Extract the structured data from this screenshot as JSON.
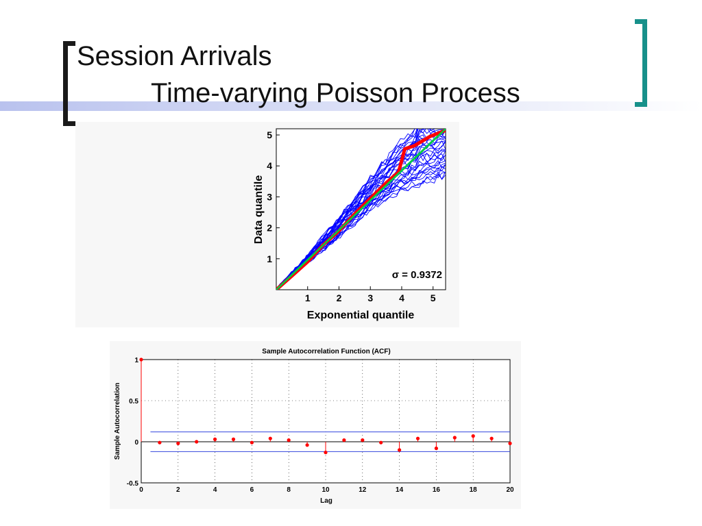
{
  "slide": {
    "title_line1": "Session Arrivals",
    "title_line2": "Time-varying Poisson Process",
    "colors": {
      "title_bar_start": "#b9c2ee",
      "left_bracket": "#1a1a1a",
      "right_bracket": "#17908a"
    }
  },
  "chart_data": [
    {
      "type": "line",
      "title": "",
      "xlabel": "Exponential quantile",
      "ylabel": "Data quantile",
      "xlim": [
        0,
        5.4
      ],
      "ylim": [
        0,
        5.2
      ],
      "xticks": [
        "1",
        "2",
        "3",
        "4",
        "5"
      ],
      "yticks": [
        "1",
        "2",
        "3",
        "4",
        "5"
      ],
      "annotation": "σ = 0.9372",
      "series": [
        {
          "role": "simulated-envelope",
          "color": "#0000ff",
          "upper": [
            [
              0,
              0
            ],
            [
              1,
              1.1
            ],
            [
              2,
              2.35
            ],
            [
              3,
              3.6
            ],
            [
              4,
              4.8
            ],
            [
              4.5,
              5.2
            ]
          ],
          "lower": [
            [
              0,
              0
            ],
            [
              1,
              0.9
            ],
            [
              2,
              1.7
            ],
            [
              3,
              2.6
            ],
            [
              4,
              3.2
            ],
            [
              5.4,
              3.7
            ]
          ]
        },
        {
          "role": "observed",
          "color": "#ff0000",
          "x": [
            0,
            0.5,
            1,
            1.5,
            2,
            2.5,
            3,
            3.5,
            3.9,
            4.1,
            4.4,
            4.9,
            5.4
          ],
          "y": [
            0,
            0.45,
            0.9,
            1.45,
            1.9,
            2.45,
            2.95,
            3.45,
            3.8,
            4.55,
            4.65,
            4.95,
            5.15
          ]
        },
        {
          "role": "reference",
          "color": "#00cc44",
          "x": [
            0,
            5.4
          ],
          "y": [
            0,
            5.2
          ]
        }
      ]
    },
    {
      "type": "scatter",
      "title": "Sample Autocorrelation Function (ACF)",
      "xlabel": "Lag",
      "ylabel": "Sample Autocorrelation",
      "xlim": [
        0,
        20
      ],
      "ylim": [
        -0.5,
        1
      ],
      "grid": true,
      "xticks": [
        "0",
        "2",
        "4",
        "6",
        "8",
        "10",
        "12",
        "14",
        "16",
        "18",
        "20"
      ],
      "yticks": [
        "-0.5",
        "0",
        "0.5",
        "1"
      ],
      "confidence_bound": 0.12,
      "x": [
        0,
        1,
        2,
        3,
        4,
        5,
        6,
        7,
        8,
        9,
        10,
        11,
        12,
        13,
        14,
        15,
        16,
        17,
        18,
        19,
        20
      ],
      "values": [
        1.0,
        -0.01,
        -0.02,
        0.0,
        0.03,
        0.03,
        -0.01,
        0.04,
        0.02,
        -0.04,
        -0.13,
        0.02,
        0.02,
        -0.01,
        -0.1,
        0.04,
        -0.08,
        0.05,
        0.07,
        0.04,
        -0.02
      ]
    }
  ]
}
